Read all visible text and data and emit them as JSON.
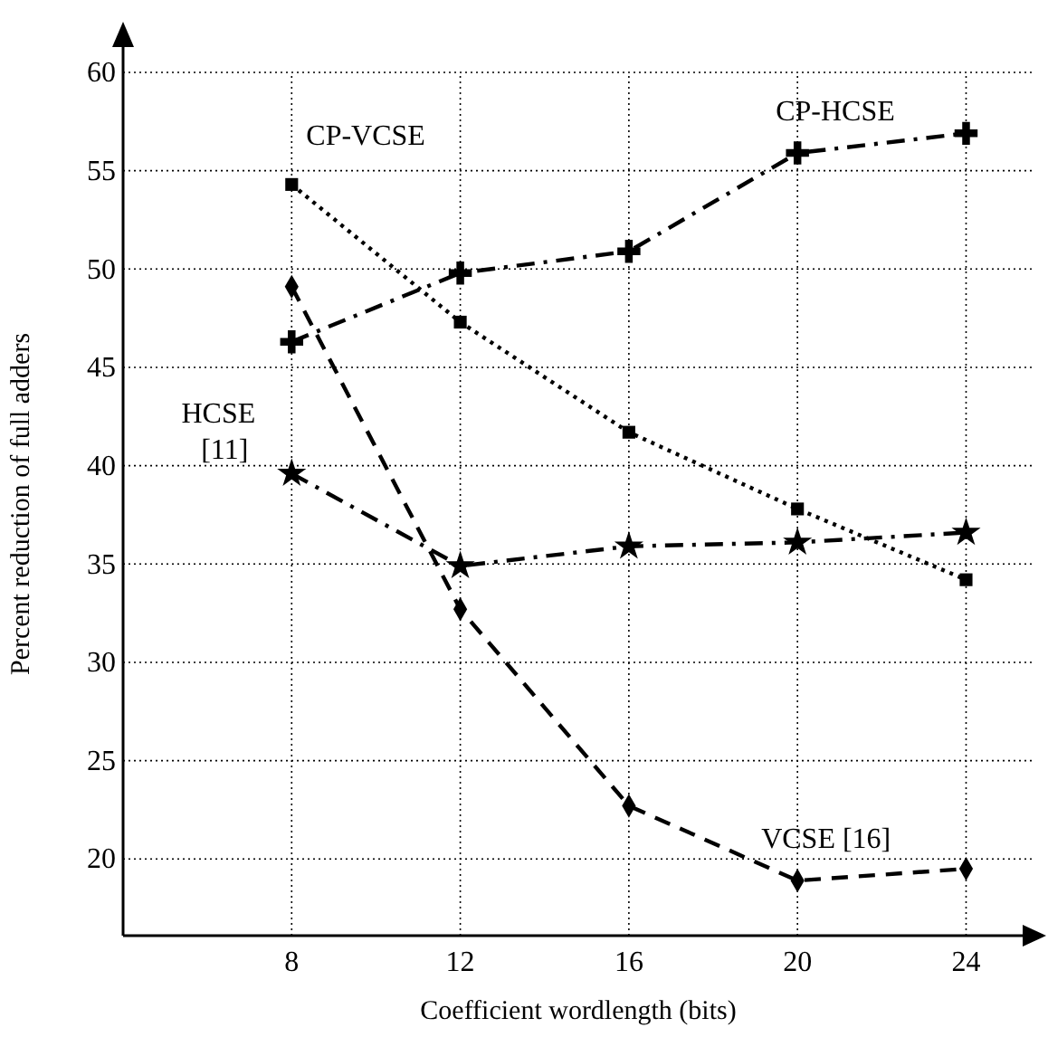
{
  "chart_data": {
    "type": "line",
    "xlabel": "Coefficient wordlength (bits)",
    "ylabel": "Percent reduction of full adders",
    "x": [
      8,
      12,
      16,
      20,
      24
    ],
    "series": [
      {
        "name": "CP-VCSE",
        "color": "#000000",
        "marker": "square",
        "line_style": "dotted",
        "values": [
          54.3,
          47.3,
          41.7,
          37.8,
          34.2
        ]
      },
      {
        "name": "CP-HCSE",
        "color": "#000000",
        "marker": "cross",
        "line_style": "dashdot",
        "values": [
          46.3,
          49.8,
          50.9,
          55.9,
          56.9
        ]
      },
      {
        "name": "HCSE [11]",
        "color": "#000000",
        "marker": "star",
        "line_style": "dashdot",
        "values": [
          39.6,
          34.9,
          35.9,
          36.1,
          36.6
        ]
      },
      {
        "name": "VCSE [16]",
        "color": "#000000",
        "marker": "diamond",
        "line_style": "dashed",
        "values": [
          49.1,
          32.7,
          22.7,
          18.9,
          19.5
        ]
      }
    ],
    "xlim": [
      4,
      25.6
    ],
    "ylim": [
      16.1,
      60
    ],
    "xticks": [
      8,
      12,
      16,
      20,
      24
    ],
    "yticks": [
      20,
      25,
      30,
      35,
      40,
      45,
      50,
      55,
      60
    ],
    "grid": true
  }
}
